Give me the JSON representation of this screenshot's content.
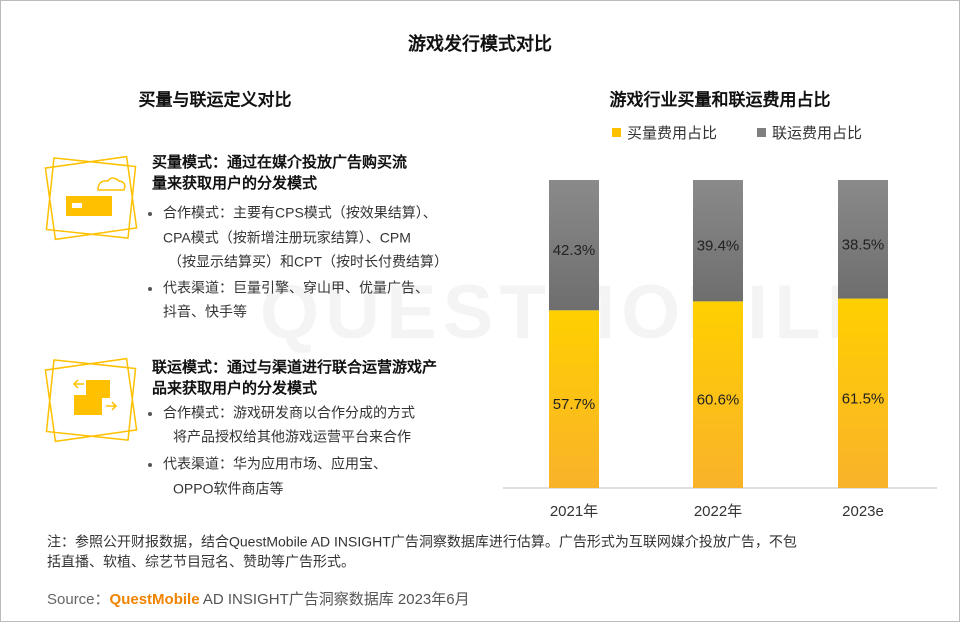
{
  "title": "游戏发行模式对比",
  "watermark": "QUESTMOBILE",
  "definitions": {
    "heading": "买量与联运定义对比",
    "blocks": [
      {
        "title_lines": [
          "买量模式：通过在媒介投放广告购买流",
          "量来获取用户的分发模式"
        ],
        "bullets": [
          [
            "合作模式：主要有CPS模式（按效果结算）、",
            "CPA模式（按新增注册玩家结算）、CPM",
            "（按显示结算买）和CPT（按时长付费结算）"
          ],
          [
            "代表渠道：巨量引擎、穿山甲、优量广告、",
            "抖音、快手等"
          ]
        ]
      },
      {
        "title_lines": [
          "联运模式：通过与渠道进行联合运营游戏产",
          "品来获取用户的分发模式"
        ],
        "bullets": [
          [
            "合作模式：游戏研发商以合作分成的方式",
            "将产品授权给其他游戏运营平台来合作"
          ],
          [
            "代表渠道：华为应用市场、应用宝、",
            "OPPO软件商店等"
          ]
        ]
      }
    ]
  },
  "chart_data": {
    "type": "stacked_bar",
    "title": "游戏行业买量和联运费用占比",
    "categories": [
      "2021年",
      "2022年",
      "2023e"
    ],
    "series": [
      {
        "name": "买量费用占比",
        "color": "#ffc000",
        "values": [
          57.7,
          60.6,
          61.5
        ],
        "value_labels": [
          "57.7%",
          "60.6%",
          "61.5%"
        ]
      },
      {
        "name": "联运费用占比",
        "color": "#7f7f7f",
        "values": [
          42.3,
          39.4,
          38.5
        ],
        "value_labels": [
          "42.3%",
          "39.4%",
          "38.5%"
        ]
      }
    ],
    "legend": "top"
  },
  "note_lines": [
    "注：参照公开财报数据，结合QuestMobile AD INSIGHT广告洞察数据库进行估算。广告形式为互联网媒介投放广告，不包",
    "括直播、软植、综艺节目冠名、赞助等广告形式。"
  ],
  "source": {
    "label": "Source：",
    "brand": "QuestMobile",
    "text": " AD INSIGHT广告洞察数据库 2023年6月"
  }
}
